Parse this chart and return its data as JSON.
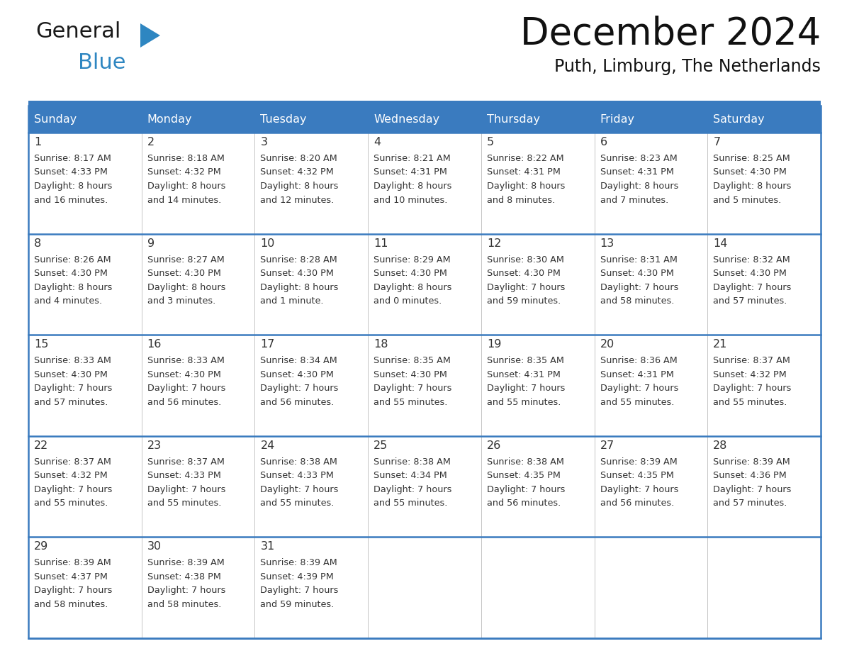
{
  "title": "December 2024",
  "subtitle": "Puth, Limburg, The Netherlands",
  "header_color": "#3a7bbf",
  "header_text_color": "#FFFFFF",
  "border_color": "#3a7bbf",
  "week_separator_color": "#3a7bbf",
  "text_color": "#333333",
  "day_headers": [
    "Sunday",
    "Monday",
    "Tuesday",
    "Wednesday",
    "Thursday",
    "Friday",
    "Saturday"
  ],
  "weeks": [
    [
      {
        "day": 1,
        "sunrise": "8:17 AM",
        "sunset": "4:33 PM",
        "daylight": "8 hours\nand 16 minutes."
      },
      {
        "day": 2,
        "sunrise": "8:18 AM",
        "sunset": "4:32 PM",
        "daylight": "8 hours\nand 14 minutes."
      },
      {
        "day": 3,
        "sunrise": "8:20 AM",
        "sunset": "4:32 PM",
        "daylight": "8 hours\nand 12 minutes."
      },
      {
        "day": 4,
        "sunrise": "8:21 AM",
        "sunset": "4:31 PM",
        "daylight": "8 hours\nand 10 minutes."
      },
      {
        "day": 5,
        "sunrise": "8:22 AM",
        "sunset": "4:31 PM",
        "daylight": "8 hours\nand 8 minutes."
      },
      {
        "day": 6,
        "sunrise": "8:23 AM",
        "sunset": "4:31 PM",
        "daylight": "8 hours\nand 7 minutes."
      },
      {
        "day": 7,
        "sunrise": "8:25 AM",
        "sunset": "4:30 PM",
        "daylight": "8 hours\nand 5 minutes."
      }
    ],
    [
      {
        "day": 8,
        "sunrise": "8:26 AM",
        "sunset": "4:30 PM",
        "daylight": "8 hours\nand 4 minutes."
      },
      {
        "day": 9,
        "sunrise": "8:27 AM",
        "sunset": "4:30 PM",
        "daylight": "8 hours\nand 3 minutes."
      },
      {
        "day": 10,
        "sunrise": "8:28 AM",
        "sunset": "4:30 PM",
        "daylight": "8 hours\nand 1 minute."
      },
      {
        "day": 11,
        "sunrise": "8:29 AM",
        "sunset": "4:30 PM",
        "daylight": "8 hours\nand 0 minutes."
      },
      {
        "day": 12,
        "sunrise": "8:30 AM",
        "sunset": "4:30 PM",
        "daylight": "7 hours\nand 59 minutes."
      },
      {
        "day": 13,
        "sunrise": "8:31 AM",
        "sunset": "4:30 PM",
        "daylight": "7 hours\nand 58 minutes."
      },
      {
        "day": 14,
        "sunrise": "8:32 AM",
        "sunset": "4:30 PM",
        "daylight": "7 hours\nand 57 minutes."
      }
    ],
    [
      {
        "day": 15,
        "sunrise": "8:33 AM",
        "sunset": "4:30 PM",
        "daylight": "7 hours\nand 57 minutes."
      },
      {
        "day": 16,
        "sunrise": "8:33 AM",
        "sunset": "4:30 PM",
        "daylight": "7 hours\nand 56 minutes."
      },
      {
        "day": 17,
        "sunrise": "8:34 AM",
        "sunset": "4:30 PM",
        "daylight": "7 hours\nand 56 minutes."
      },
      {
        "day": 18,
        "sunrise": "8:35 AM",
        "sunset": "4:30 PM",
        "daylight": "7 hours\nand 55 minutes."
      },
      {
        "day": 19,
        "sunrise": "8:35 AM",
        "sunset": "4:31 PM",
        "daylight": "7 hours\nand 55 minutes."
      },
      {
        "day": 20,
        "sunrise": "8:36 AM",
        "sunset": "4:31 PM",
        "daylight": "7 hours\nand 55 minutes."
      },
      {
        "day": 21,
        "sunrise": "8:37 AM",
        "sunset": "4:32 PM",
        "daylight": "7 hours\nand 55 minutes."
      }
    ],
    [
      {
        "day": 22,
        "sunrise": "8:37 AM",
        "sunset": "4:32 PM",
        "daylight": "7 hours\nand 55 minutes."
      },
      {
        "day": 23,
        "sunrise": "8:37 AM",
        "sunset": "4:33 PM",
        "daylight": "7 hours\nand 55 minutes."
      },
      {
        "day": 24,
        "sunrise": "8:38 AM",
        "sunset": "4:33 PM",
        "daylight": "7 hours\nand 55 minutes."
      },
      {
        "day": 25,
        "sunrise": "8:38 AM",
        "sunset": "4:34 PM",
        "daylight": "7 hours\nand 55 minutes."
      },
      {
        "day": 26,
        "sunrise": "8:38 AM",
        "sunset": "4:35 PM",
        "daylight": "7 hours\nand 56 minutes."
      },
      {
        "day": 27,
        "sunrise": "8:39 AM",
        "sunset": "4:35 PM",
        "daylight": "7 hours\nand 56 minutes."
      },
      {
        "day": 28,
        "sunrise": "8:39 AM",
        "sunset": "4:36 PM",
        "daylight": "7 hours\nand 57 minutes."
      }
    ],
    [
      {
        "day": 29,
        "sunrise": "8:39 AM",
        "sunset": "4:37 PM",
        "daylight": "7 hours\nand 58 minutes."
      },
      {
        "day": 30,
        "sunrise": "8:39 AM",
        "sunset": "4:38 PM",
        "daylight": "7 hours\nand 58 minutes."
      },
      {
        "day": 31,
        "sunrise": "8:39 AM",
        "sunset": "4:39 PM",
        "daylight": "7 hours\nand 59 minutes."
      },
      null,
      null,
      null,
      null
    ]
  ],
  "logo_text_general": "General",
  "logo_text_blue": "Blue",
  "logo_color_general": "#1a1a1a",
  "logo_color_blue": "#2E86C1",
  "fig_width": 11.88,
  "fig_height": 9.18,
  "dpi": 100
}
